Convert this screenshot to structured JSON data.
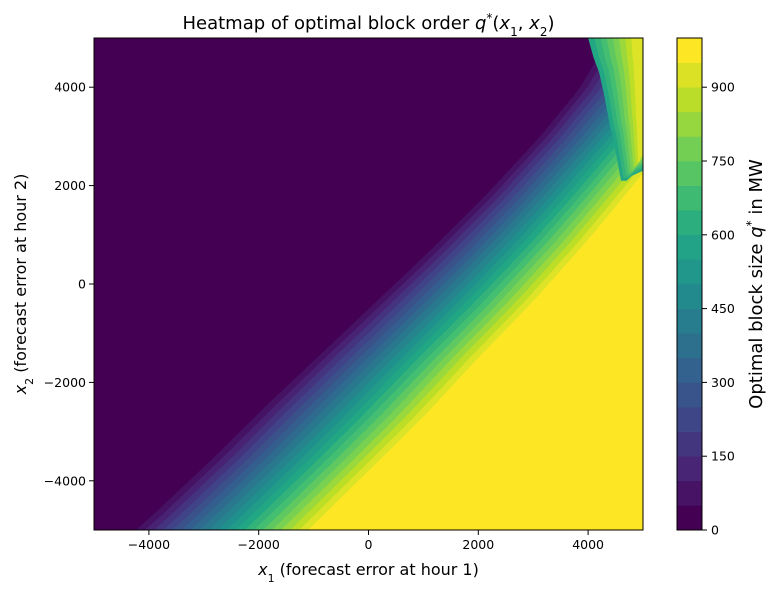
{
  "chart_data": {
    "type": "heatmap",
    "title": {
      "prefix": "Heatmap of optimal block order ",
      "symbol": "q",
      "sup": "*",
      "args_open": "(",
      "arg1": "x",
      "arg1_sub": "1",
      "comma": ", ",
      "arg2": "x",
      "arg2_sub": "2",
      "args_close": ")"
    },
    "xlabel": {
      "symbol": "x",
      "sub": "1",
      "text": " (forecast error at hour 1)"
    },
    "ylabel": {
      "symbol": "x",
      "sub": "2",
      "text": " (forecast error at hour 2)"
    },
    "xlim": [
      -5000,
      5000
    ],
    "ylim": [
      -5000,
      5000
    ],
    "xticks": [
      -4000,
      -2000,
      0,
      2000,
      4000
    ],
    "xtick_labels": [
      "−4000",
      "−2000",
      "0",
      "2000",
      "4000"
    ],
    "yticks": [
      -4000,
      -2000,
      0,
      2000,
      4000
    ],
    "ytick_labels": [
      "−4000",
      "−2000",
      "0",
      "2000",
      "4000"
    ],
    "grid": false,
    "colormap": "viridis",
    "colorbar": {
      "label_prefix": "Optimal block size ",
      "label_symbol": "q",
      "label_sup": "*",
      "label_suffix": " in MW",
      "range": [
        0,
        1000
      ],
      "level_step": 50,
      "ticks": [
        0,
        150,
        300,
        450,
        600,
        750,
        900
      ],
      "tick_labels": [
        "0",
        "150",
        "300",
        "450",
        "600",
        "750",
        "900"
      ]
    },
    "field": {
      "description_of_values": "q* is 0 in the upper-left region and 1000 in the lower-right region, ramping linearly across a diagonal band",
      "transition_band_start": [
        [
          -4400,
          -5000
        ],
        [
          -4000,
          -4600
        ],
        [
          -3000,
          -3550
        ],
        [
          -2000,
          -2450
        ],
        [
          -1000,
          -1400
        ],
        [
          0,
          -350
        ],
        [
          1000,
          700
        ],
        [
          2000,
          1800
        ],
        [
          3000,
          3000
        ],
        [
          3700,
          3950
        ],
        [
          4250,
          5000
        ]
      ],
      "transition_band_end": [
        [
          -1100,
          -5000
        ],
        [
          0,
          -3800
        ],
        [
          1000,
          -2700
        ],
        [
          2000,
          -1500
        ],
        [
          3000,
          -350
        ],
        [
          4000,
          900
        ],
        [
          5000,
          2250
        ]
      ],
      "irregular_region": {
        "note": "jagged lower-level boundary near the top-right corner",
        "boundary": [
          [
            4000,
            5000
          ],
          [
            4100,
            4600
          ],
          [
            4200,
            4300
          ],
          [
            4300,
            3800
          ],
          [
            4350,
            3500
          ],
          [
            4400,
            3200
          ],
          [
            4450,
            3000
          ],
          [
            4500,
            2700
          ],
          [
            4600,
            2100
          ],
          [
            4700,
            2100
          ],
          [
            4800,
            2200
          ],
          [
            5000,
            2300
          ]
        ]
      }
    }
  }
}
